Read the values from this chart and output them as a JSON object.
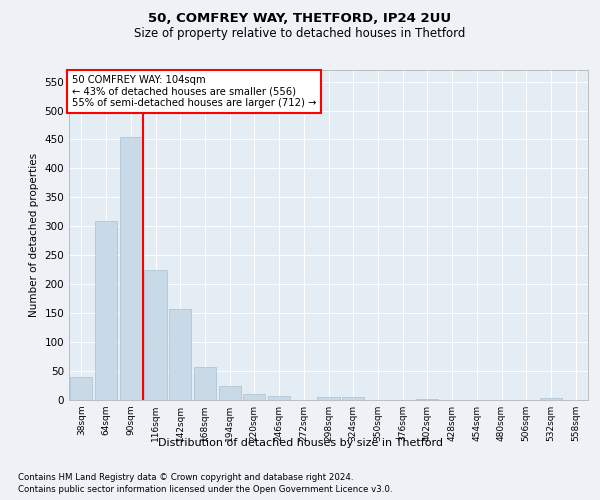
{
  "title1": "50, COMFREY WAY, THETFORD, IP24 2UU",
  "title2": "Size of property relative to detached houses in Thetford",
  "xlabel": "Distribution of detached houses by size in Thetford",
  "ylabel": "Number of detached properties",
  "categories": [
    "38sqm",
    "64sqm",
    "90sqm",
    "116sqm",
    "142sqm",
    "168sqm",
    "194sqm",
    "220sqm",
    "246sqm",
    "272sqm",
    "298sqm",
    "324sqm",
    "350sqm",
    "376sqm",
    "402sqm",
    "428sqm",
    "454sqm",
    "480sqm",
    "506sqm",
    "532sqm",
    "558sqm"
  ],
  "values": [
    40,
    310,
    455,
    225,
    158,
    57,
    25,
    10,
    7,
    0,
    5,
    5,
    0,
    0,
    2,
    0,
    0,
    0,
    0,
    3,
    0
  ],
  "bar_color": "#c8d9e8",
  "bar_edge_color": "#a8bfcf",
  "redline_x": 2.5,
  "annotation_line1": "50 COMFREY WAY: 104sqm",
  "annotation_line2": "← 43% of detached houses are smaller (556)",
  "annotation_line3": "55% of semi-detached houses are larger (712) →",
  "ylim": [
    0,
    570
  ],
  "yticks": [
    0,
    50,
    100,
    150,
    200,
    250,
    300,
    350,
    400,
    450,
    500,
    550
  ],
  "footnote1": "Contains HM Land Registry data © Crown copyright and database right 2024.",
  "footnote2": "Contains public sector information licensed under the Open Government Licence v3.0.",
  "bg_color": "#eef2f7",
  "plot_bg_color": "#e4ecf4"
}
